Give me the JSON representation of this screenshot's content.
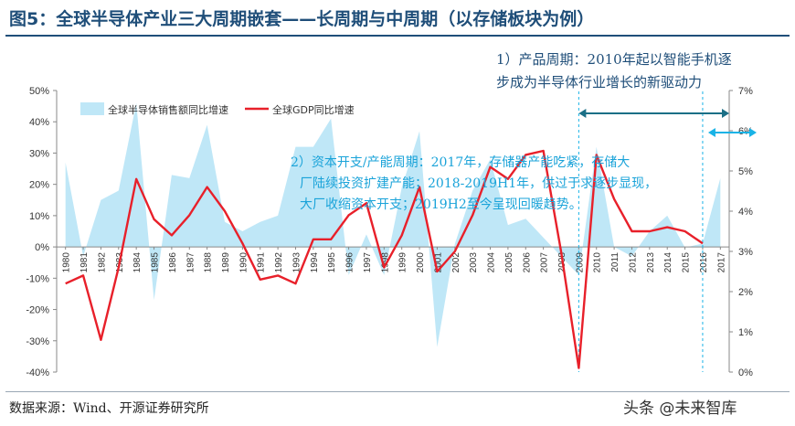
{
  "page": {
    "title": "图5：全球半导体产业三大周期嵌套——长周期与中周期（以存储板块为例）",
    "source": "数据来源：Wind、开源证券研究所",
    "watermark": "头条 @未来智库"
  },
  "annotations": {
    "cycle_1_line1": "1）产品周期：2010年起以智能手机逐",
    "cycle_1_line2": "步成为半导体行业增长的新驱动力",
    "cycle_2_line1": "2）资本开支/产能周期：2017年，存储器产能吃紧，存储大",
    "cycle_2_line2": "厂陆续投资扩建产能；2018-2019H1年，供过于求逐步显现，",
    "cycle_2_line3": "大厂收缩资本开支；2019H2至今呈现回暖趋势。"
  },
  "colors": {
    "area": "#bfe7f7",
    "line": "#e8202a",
    "arrow_dark": "#1b6f86",
    "arrow_light": "#19b3e6",
    "annotation_blue": "#1aa3d9",
    "annotation_dark": "#1f4e79"
  },
  "chart_data": {
    "type": "area",
    "x": [
      "1980",
      "1981",
      "1982",
      "1983",
      "1984",
      "1985",
      "1986",
      "1987",
      "1988",
      "1989",
      "1990",
      "1991",
      "1992",
      "1993",
      "1994",
      "1995",
      "1996",
      "1997",
      "1998",
      "1999",
      "2000",
      "2001",
      "2002",
      "2003",
      "2004",
      "2005",
      "2006",
      "2007",
      "2008",
      "2009",
      "2010",
      "2011",
      "2012",
      "2013",
      "2014",
      "2015",
      "2016",
      "2017"
    ],
    "yleft_ticks": [
      "-40%",
      "-30%",
      "-20%",
      "-10%",
      "0%",
      "10%",
      "20%",
      "30%",
      "40%",
      "50%"
    ],
    "yright_ticks": [
      "0%",
      "1%",
      "2%",
      "3%",
      "4%",
      "5%",
      "6%",
      "7%"
    ],
    "yleft_lim": [
      -40,
      50
    ],
    "yright_lim": [
      0,
      7
    ],
    "legend": "top-left",
    "grid": false,
    "series": [
      {
        "name": "全球半导体销售额同比增速",
        "axis": "left",
        "type": "area",
        "values": [
          27,
          -3,
          15,
          18,
          46,
          -17,
          23,
          22,
          39,
          8,
          5,
          8,
          10,
          32,
          32,
          41,
          -9,
          4,
          -9,
          19,
          37,
          -32,
          1,
          18,
          28,
          7,
          9,
          3,
          -3,
          -9,
          32,
          0,
          -3,
          5,
          10,
          -0.2,
          1.1,
          22
        ]
      },
      {
        "name": "全球GDP同比增速",
        "axis": "right",
        "type": "line",
        "values": [
          2.2,
          2.4,
          0.8,
          2.6,
          4.8,
          3.8,
          3.4,
          3.9,
          4.6,
          4.0,
          3.2,
          2.3,
          2.4,
          2.2,
          3.3,
          3.3,
          3.9,
          4.2,
          2.6,
          3.4,
          4.6,
          2.5,
          3.0,
          3.9,
          5.1,
          4.8,
          5.4,
          5.5,
          3.0,
          0.1,
          5.4,
          4.3,
          3.5,
          3.5,
          3.6,
          3.5,
          3.2,
          null
        ]
      }
    ]
  }
}
